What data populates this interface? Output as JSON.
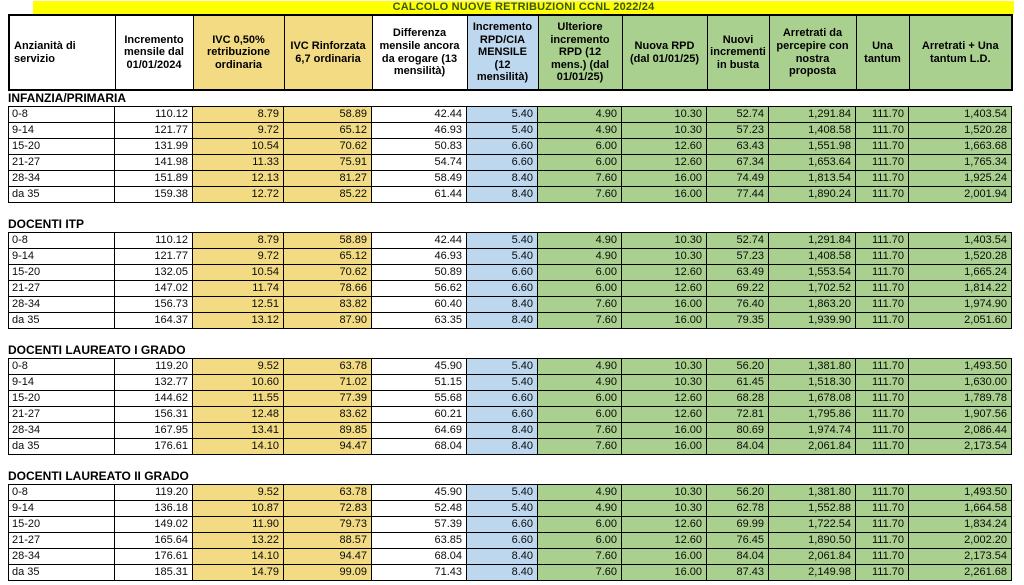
{
  "title": "CALCOLO NUOVE RETRIBUZIONI CCNL 2022/24",
  "colors": {
    "title_bar_bg": "#FFFF00",
    "title_text": "#375623",
    "ivc_column_fill": "#F2DB83",
    "rpd_column_fill": "#BDD7EE",
    "green_column_fill": "#A9D08E",
    "grid_border": "#000000"
  },
  "columns": [
    {
      "label": "Anzianità di servizio",
      "bg": "white"
    },
    {
      "label": "Incremento mensile dal 01/01/2024",
      "bg": "white"
    },
    {
      "label": "IVC 0,50% retribuzione ordinaria",
      "bg": "tan"
    },
    {
      "label": "IVC Rinforzata 6,7 ordinaria",
      "bg": "tan"
    },
    {
      "label": "Differenza mensile ancora da erogare (13 mensilità)",
      "bg": "white"
    },
    {
      "label": "Incremento RPD/CIA MENSILE (12 mensilità)",
      "bg": "blue"
    },
    {
      "label": "Ulteriore incremento RPD (12 mens.) (dal 01/01/25)",
      "bg": "green"
    },
    {
      "label": "Nuova RPD (dal 01/01/25)",
      "bg": "green"
    },
    {
      "label": "Nuovi incrementi in busta",
      "bg": "green"
    },
    {
      "label": "Arretrati da percepire con nostra proposta",
      "bg": "green"
    },
    {
      "label": "Una tantum",
      "bg": "green"
    },
    {
      "label": "Arretrati + Una tantum L.D.",
      "bg": "green"
    }
  ],
  "sections": [
    {
      "name": "INFANZIA/PRIMARIA",
      "rows": [
        [
          "0-8",
          "110.12",
          "8.79",
          "58.89",
          "42.44",
          "5.40",
          "4.90",
          "10.30",
          "52.74",
          "1,291.84",
          "111.70",
          "1,403.54"
        ],
        [
          "9-14",
          "121.77",
          "9.72",
          "65.12",
          "46.93",
          "5.40",
          "4.90",
          "10.30",
          "57.23",
          "1,408.58",
          "111.70",
          "1,520.28"
        ],
        [
          "15-20",
          "131.99",
          "10.54",
          "70.62",
          "50.83",
          "6.60",
          "6.00",
          "12.60",
          "63.43",
          "1,551.98",
          "111.70",
          "1,663.68"
        ],
        [
          "21-27",
          "141.98",
          "11.33",
          "75.91",
          "54.74",
          "6.60",
          "6.00",
          "12.60",
          "67.34",
          "1,653.64",
          "111.70",
          "1,765.34"
        ],
        [
          "28-34",
          "151.89",
          "12.13",
          "81.27",
          "58.49",
          "8.40",
          "7.60",
          "16.00",
          "74.49",
          "1,813.54",
          "111.70",
          "1,925.24"
        ],
        [
          "da 35",
          "159.38",
          "12.72",
          "85.22",
          "61.44",
          "8.40",
          "7.60",
          "16.00",
          "77.44",
          "1,890.24",
          "111.70",
          "2,001.94"
        ]
      ]
    },
    {
      "name": "DOCENTI ITP",
      "rows": [
        [
          "0-8",
          "110.12",
          "8.79",
          "58.89",
          "42.44",
          "5.40",
          "4.90",
          "10.30",
          "52.74",
          "1,291.84",
          "111.70",
          "1,403.54"
        ],
        [
          "9-14",
          "121.77",
          "9.72",
          "65.12",
          "46.93",
          "5.40",
          "4.90",
          "10.30",
          "57.23",
          "1,408.58",
          "111.70",
          "1,520.28"
        ],
        [
          "15-20",
          "132.05",
          "10.54",
          "70.62",
          "50.89",
          "6.60",
          "6.00",
          "12.60",
          "63.49",
          "1,553.54",
          "111.70",
          "1,665.24"
        ],
        [
          "21-27",
          "147.02",
          "11.74",
          "78.66",
          "56.62",
          "6.60",
          "6.00",
          "12.60",
          "69.22",
          "1,702.52",
          "111.70",
          "1,814.22"
        ],
        [
          "28-34",
          "156.73",
          "12.51",
          "83.82",
          "60.40",
          "8.40",
          "7.60",
          "16.00",
          "76.40",
          "1,863.20",
          "111.70",
          "1,974.90"
        ],
        [
          "da 35",
          "164.37",
          "13.12",
          "87.90",
          "63.35",
          "8.40",
          "7.60",
          "16.00",
          "79.35",
          "1,939.90",
          "111.70",
          "2,051.60"
        ]
      ]
    },
    {
      "name": "DOCENTI LAUREATO I GRADO",
      "rows": [
        [
          "0-8",
          "119.20",
          "9.52",
          "63.78",
          "45.90",
          "5.40",
          "4.90",
          "10.30",
          "56.20",
          "1,381.80",
          "111.70",
          "1,493.50"
        ],
        [
          "9-14",
          "132.77",
          "10.60",
          "71.02",
          "51.15",
          "5.40",
          "4.90",
          "10.30",
          "61.45",
          "1,518.30",
          "111.70",
          "1,630.00"
        ],
        [
          "15-20",
          "144.62",
          "11.55",
          "77.39",
          "55.68",
          "6.60",
          "6.00",
          "12.60",
          "68.28",
          "1,678.08",
          "111.70",
          "1,789.78"
        ],
        [
          "21-27",
          "156.31",
          "12.48",
          "83.62",
          "60.21",
          "6.60",
          "6.00",
          "12.60",
          "72.81",
          "1,795.86",
          "111.70",
          "1,907.56"
        ],
        [
          "28-34",
          "167.95",
          "13.41",
          "89.85",
          "64.69",
          "8.40",
          "7.60",
          "16.00",
          "80.69",
          "1,974.74",
          "111.70",
          "2,086.44"
        ],
        [
          "da 35",
          "176.61",
          "14.10",
          "94.47",
          "68.04",
          "8.40",
          "7.60",
          "16.00",
          "84.04",
          "2,061.84",
          "111.70",
          "2,173.54"
        ]
      ]
    },
    {
      "name": "DOCENTI LAUREATO II GRADO",
      "rows": [
        [
          "0-8",
          "119.20",
          "9.52",
          "63.78",
          "45.90",
          "5.40",
          "4.90",
          "10.30",
          "56.20",
          "1,381.80",
          "111.70",
          "1,493.50"
        ],
        [
          "9-14",
          "136.18",
          "10.87",
          "72.83",
          "52.48",
          "5.40",
          "4.90",
          "10.30",
          "62.78",
          "1,552.88",
          "111.70",
          "1,664.58"
        ],
        [
          "15-20",
          "149.02",
          "11.90",
          "79.73",
          "57.39",
          "6.60",
          "6.00",
          "12.60",
          "69.99",
          "1,722.54",
          "111.70",
          "1,834.24"
        ],
        [
          "21-27",
          "165.64",
          "13.22",
          "88.57",
          "63.85",
          "6.60",
          "6.00",
          "12.60",
          "76.45",
          "1,890.50",
          "111.70",
          "2,002.20"
        ],
        [
          "28-34",
          "176.61",
          "14.10",
          "94.47",
          "68.04",
          "8.40",
          "7.60",
          "16.00",
          "84.04",
          "2,061.84",
          "111.70",
          "2,173.54"
        ],
        [
          "da 35",
          "185.31",
          "14.79",
          "99.09",
          "71.43",
          "8.40",
          "7.60",
          "16.00",
          "87.43",
          "2,149.98",
          "111.70",
          "2,261.68"
        ]
      ]
    }
  ]
}
